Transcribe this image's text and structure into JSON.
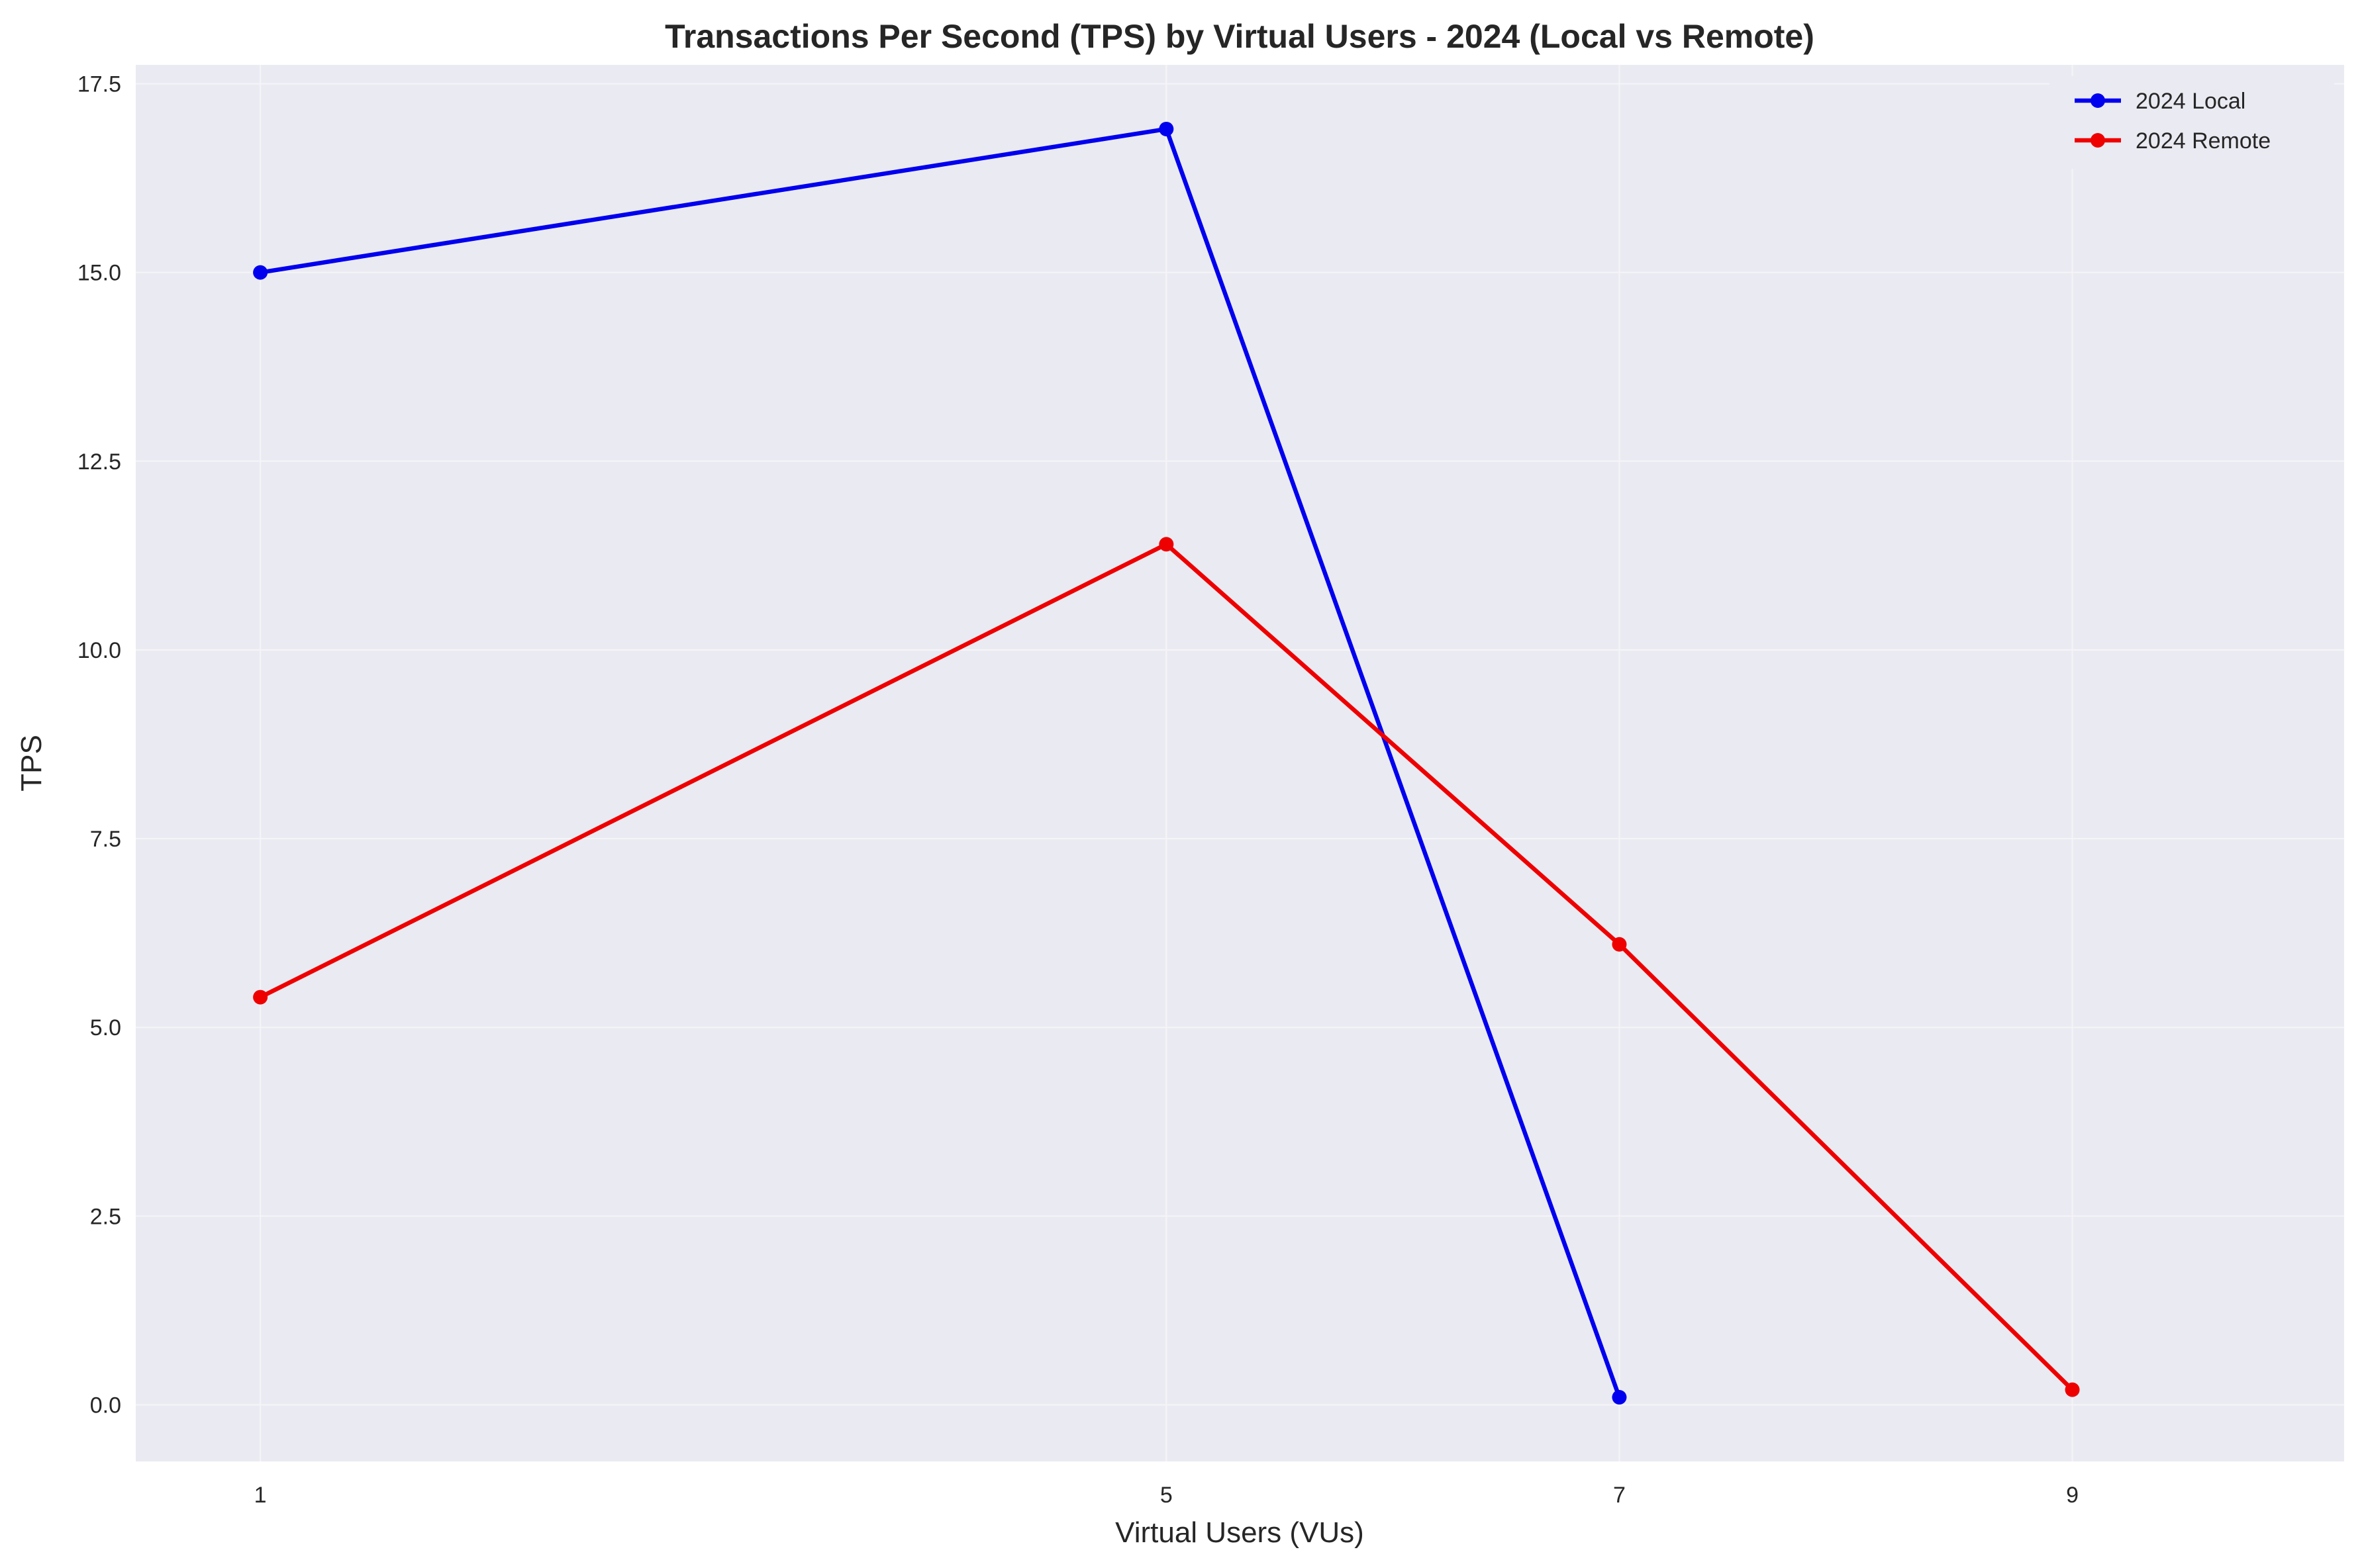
{
  "chart_data": {
    "type": "line",
    "title": "Transactions Per Second (TPS) by Virtual Users - 2024 (Local vs Remote)",
    "xlabel": "Virtual Users (VUs)",
    "ylabel": "TPS",
    "x_ticks": [
      1,
      5,
      7,
      9
    ],
    "x_tick_labels": [
      "1",
      "5",
      "7",
      "9"
    ],
    "y_ticks": [
      0.0,
      2.5,
      5.0,
      7.5,
      10.0,
      12.5,
      15.0,
      17.5
    ],
    "y_tick_labels": [
      "0.0",
      "2.5",
      "5.0",
      "7.5",
      "10.0",
      "12.5",
      "15.0",
      "17.5"
    ],
    "xlim": [
      0.45,
      10.2
    ],
    "ylim": [
      -0.75,
      17.75
    ],
    "grid": true,
    "legend_position": "top-right",
    "background_color": "#eaeaf2",
    "grid_color": "#f5f5f8",
    "series": [
      {
        "name": "2024 Local",
        "color": "#0000ee",
        "x": [
          1,
          5,
          7
        ],
        "y": [
          15.0,
          16.9,
          0.1
        ]
      },
      {
        "name": "2024 Remote",
        "color": "#ee0000",
        "x": [
          1,
          5,
          7,
          9
        ],
        "y": [
          5.4,
          11.4,
          6.1,
          0.2
        ]
      }
    ]
  }
}
